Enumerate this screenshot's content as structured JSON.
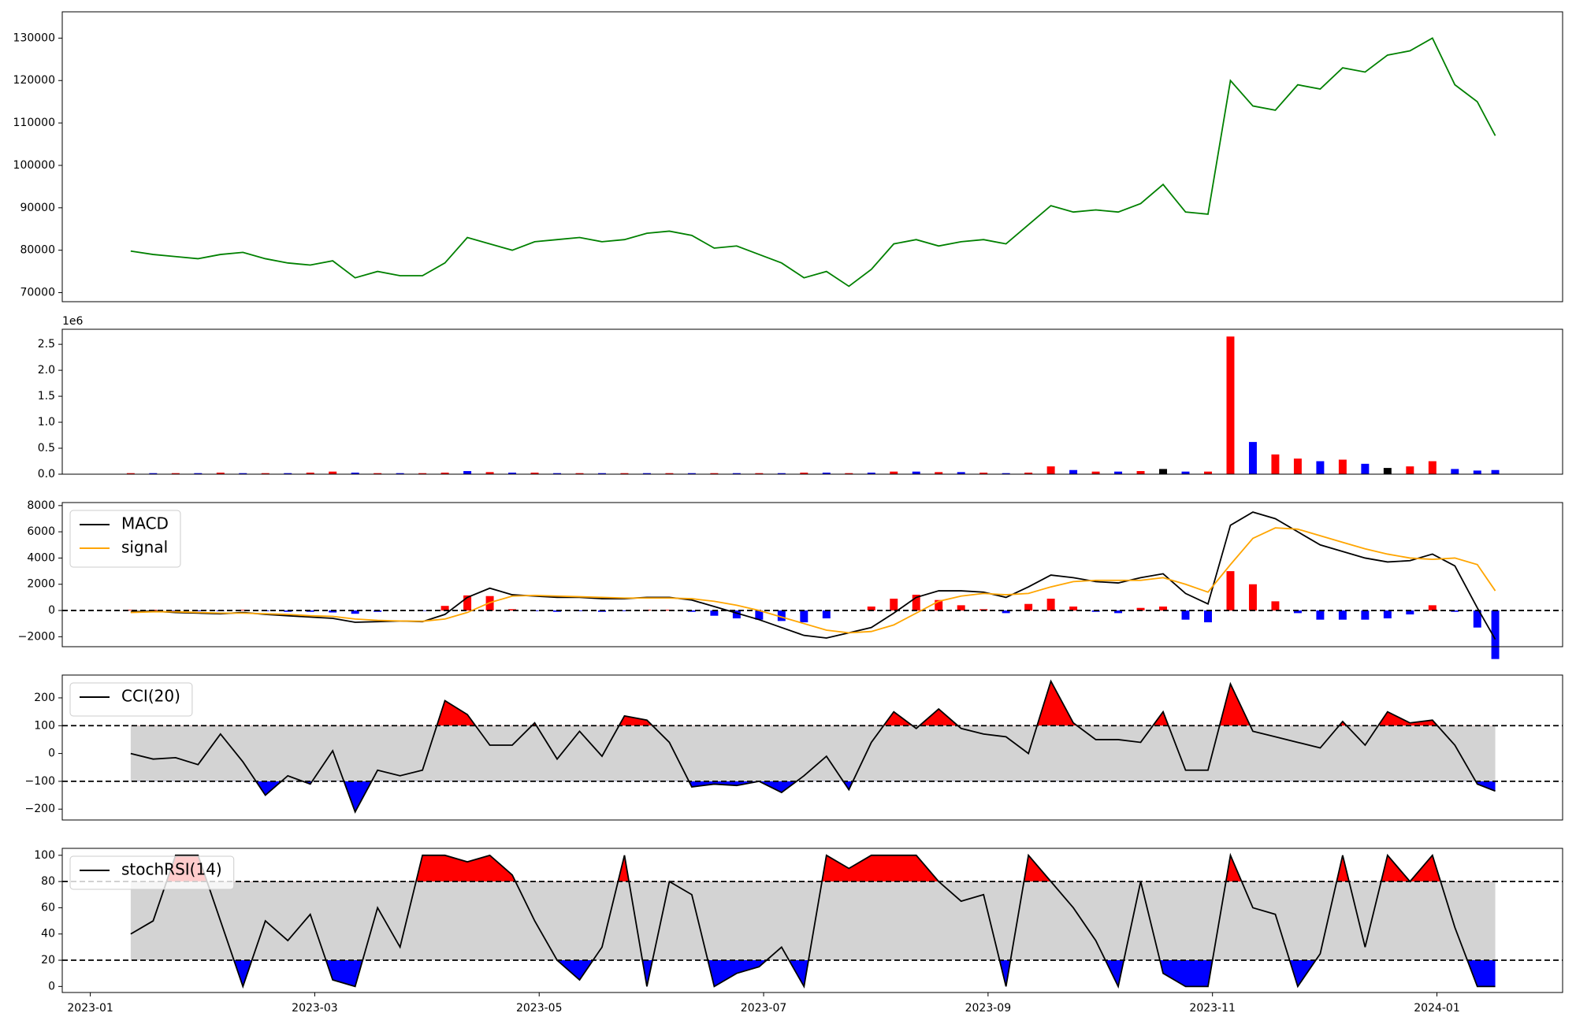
{
  "chart_data": [
    {
      "type": "line",
      "x": [
        0.36,
        0.56,
        0.76,
        0.96,
        1.16,
        1.36,
        1.56,
        1.76,
        1.96,
        2.16,
        2.36,
        2.56,
        2.76,
        2.96,
        3.16,
        3.36,
        3.56,
        3.76,
        3.96,
        4.16,
        4.36,
        4.56,
        4.76,
        4.96,
        5.16,
        5.36,
        5.56,
        5.76,
        5.96,
        6.16,
        6.36,
        6.56,
        6.76,
        6.96,
        7.16,
        7.36,
        7.56,
        7.76,
        7.96,
        8.16,
        8.36,
        8.56,
        8.76,
        8.96,
        9.16,
        9.36,
        9.56,
        9.76,
        9.96,
        10.16,
        10.36,
        10.56,
        10.76,
        10.96,
        11.16,
        11.36,
        11.56,
        11.76,
        11.96,
        12.16,
        12.36,
        12.52
      ],
      "xlim": [
        -0.25,
        13.12
      ],
      "ylim": [
        67870,
        136200
      ],
      "yticks": [
        70000,
        80000,
        90000,
        100000,
        110000,
        120000,
        130000
      ],
      "series": [
        {
          "color": "green",
          "values": [
            79800,
            79000,
            78500,
            78000,
            79000,
            79500,
            78000,
            77000,
            76500,
            77500,
            73500,
            75000,
            74000,
            74000,
            77000,
            83000,
            81500,
            80000,
            82000,
            82500,
            83000,
            82000,
            82500,
            84000,
            84500,
            83500,
            80500,
            81000,
            79000,
            77000,
            73500,
            75000,
            71500,
            75500,
            81500,
            82500,
            81000,
            82000,
            82500,
            81500,
            86000,
            90500,
            89000,
            89500,
            89000,
            91000,
            95500,
            89000,
            88500,
            120000,
            114000,
            113000,
            119000,
            118000,
            123000,
            122000,
            126000,
            127000,
            130000,
            119000,
            115000,
            107000
          ]
        }
      ]
    },
    {
      "type": "bar",
      "x": [
        0.36,
        0.56,
        0.76,
        0.96,
        1.16,
        1.36,
        1.56,
        1.76,
        1.96,
        2.16,
        2.36,
        2.56,
        2.76,
        2.96,
        3.16,
        3.36,
        3.56,
        3.76,
        3.96,
        4.16,
        4.36,
        4.56,
        4.76,
        4.96,
        5.16,
        5.36,
        5.56,
        5.76,
        5.96,
        6.16,
        6.36,
        6.56,
        6.76,
        6.96,
        7.16,
        7.36,
        7.56,
        7.76,
        7.96,
        8.16,
        8.36,
        8.56,
        8.76,
        8.96,
        9.16,
        9.36,
        9.56,
        9.76,
        9.96,
        10.16,
        10.36,
        10.56,
        10.76,
        10.96,
        11.16,
        11.36,
        11.56,
        11.76,
        11.96,
        12.16,
        12.36,
        12.52
      ],
      "xlim": [
        -0.25,
        13.12
      ],
      "ylim": [
        0,
        2.79
      ],
      "y_offset_label": "1e6",
      "yticks": [
        {
          "value": 0,
          "label": "0.0"
        },
        {
          "value": 0.5,
          "label": "0.5"
        },
        {
          "value": 1,
          "label": "1.0"
        },
        {
          "value": 1.5,
          "label": "1.5"
        },
        {
          "value": 2,
          "label": "2.0"
        },
        {
          "value": 2.5,
          "label": "2.5"
        }
      ],
      "values": [
        0.02,
        0.02,
        0.02,
        0.02,
        0.03,
        0.02,
        0.02,
        0.02,
        0.03,
        0.05,
        0.03,
        0.02,
        0.02,
        0.02,
        0.03,
        0.06,
        0.04,
        0.03,
        0.03,
        0.02,
        0.02,
        0.02,
        0.02,
        0.02,
        0.02,
        0.02,
        0.02,
        0.02,
        0.02,
        0.02,
        0.03,
        0.03,
        0.02,
        0.03,
        0.05,
        0.05,
        0.04,
        0.04,
        0.03,
        0.02,
        0.03,
        0.15,
        0.08,
        0.05,
        0.05,
        0.06,
        0.1,
        0.05,
        0.05,
        2.65,
        0.62,
        0.38,
        0.3,
        0.25,
        0.28,
        0.2,
        0.12,
        0.15,
        0.25,
        0.1,
        0.07,
        0.08
      ],
      "colors": [
        "red",
        "blue",
        "red",
        "blue",
        "red",
        "blue",
        "red",
        "blue",
        "red",
        "red",
        "blue",
        "red",
        "blue",
        "red",
        "red",
        "blue",
        "red",
        "blue",
        "red",
        "blue",
        "red",
        "blue",
        "red",
        "blue",
        "red",
        "blue",
        "red",
        "blue",
        "red",
        "blue",
        "red",
        "blue",
        "red",
        "blue",
        "red",
        "blue",
        "red",
        "blue",
        "red",
        "blue",
        "red",
        "red",
        "blue",
        "red",
        "blue",
        "red",
        "black",
        "blue",
        "red",
        "red",
        "blue",
        "red",
        "red",
        "blue",
        "red",
        "blue",
        "black",
        "red",
        "red",
        "blue",
        "blue",
        "blue"
      ]
    },
    {
      "type": "line",
      "x": [
        0.36,
        0.56,
        0.76,
        0.96,
        1.16,
        1.36,
        1.56,
        1.76,
        1.96,
        2.16,
        2.36,
        2.56,
        2.76,
        2.96,
        3.16,
        3.36,
        3.56,
        3.76,
        3.96,
        4.16,
        4.36,
        4.56,
        4.76,
        4.96,
        5.16,
        5.36,
        5.56,
        5.76,
        5.96,
        6.16,
        6.36,
        6.56,
        6.76,
        6.96,
        7.16,
        7.36,
        7.56,
        7.76,
        7.96,
        8.16,
        8.36,
        8.56,
        8.76,
        8.96,
        9.16,
        9.36,
        9.56,
        9.76,
        9.96,
        10.16,
        10.36,
        10.56,
        10.76,
        10.96,
        11.16,
        11.36,
        11.56,
        11.76,
        11.96,
        12.16,
        12.36,
        12.52
      ],
      "xlim": [
        -0.25,
        13.12
      ],
      "ylim": [
        -2760,
        8230
      ],
      "yticks": [
        {
          "value": -2000,
          "label": "−2000"
        },
        0,
        2000,
        4000,
        6000,
        8000
      ],
      "hline": 0,
      "legend": true,
      "histogram": {
        "up_color": "red",
        "down_color": "blue",
        "values": [
          50,
          50,
          -50,
          -50,
          -50,
          50,
          -50,
          -100,
          -100,
          -150,
          -250,
          -100,
          0,
          -30,
          350,
          1150,
          1100,
          100,
          -50,
          -100,
          -50,
          -100,
          -50,
          50,
          50,
          -100,
          -400,
          -600,
          -700,
          -800,
          -900,
          -600,
          0,
          300,
          900,
          1200,
          800,
          400,
          100,
          -200,
          500,
          900,
          300,
          -100,
          -200,
          200,
          300,
          -700,
          -900,
          3000,
          2000,
          700,
          -200,
          -700,
          -700,
          -700,
          -600,
          -300,
          400,
          -100,
          -1300,
          -3700
        ]
      },
      "series": [
        {
          "name": "MACD",
          "color": "black",
          "values": [
            -100,
            -50,
            -150,
            -200,
            -250,
            -150,
            -300,
            -400,
            -500,
            -600,
            -900,
            -850,
            -800,
            -850,
            -300,
            1000,
            1700,
            1200,
            1100,
            1000,
            1000,
            900,
            900,
            1000,
            1000,
            800,
            300,
            -200,
            -700,
            -1300,
            -1900,
            -2100,
            -1700,
            -1300,
            -200,
            1000,
            1500,
            1500,
            1400,
            1000,
            1800,
            2700,
            2500,
            2200,
            2100,
            2500,
            2800,
            1300,
            500,
            6500,
            7500,
            7000,
            6000,
            5000,
            4500,
            4000,
            3700,
            3800,
            4300,
            3400,
            200,
            -2200
          ]
        },
        {
          "name": "signal",
          "color": "orange",
          "values": [
            -150,
            -100,
            -100,
            -150,
            -200,
            -200,
            -250,
            -300,
            -400,
            -450,
            -650,
            -750,
            -800,
            -820,
            -650,
            -150,
            600,
            1100,
            1150,
            1100,
            1050,
            1000,
            950,
            950,
            950,
            900,
            700,
            400,
            0,
            -500,
            -1000,
            -1500,
            -1700,
            -1600,
            -1100,
            -200,
            700,
            1100,
            1300,
            1200,
            1300,
            1800,
            2200,
            2300,
            2300,
            2300,
            2500,
            2000,
            1400,
            3500,
            5500,
            6300,
            6200,
            5700,
            5200,
            4700,
            4300,
            4000,
            3900,
            4000,
            3500,
            1500
          ]
        }
      ]
    },
    {
      "type": "line",
      "x": [
        0.36,
        0.56,
        0.76,
        0.96,
        1.16,
        1.36,
        1.56,
        1.76,
        1.96,
        2.16,
        2.36,
        2.56,
        2.76,
        2.96,
        3.16,
        3.36,
        3.56,
        3.76,
        3.96,
        4.16,
        4.36,
        4.56,
        4.76,
        4.96,
        5.16,
        5.36,
        5.56,
        5.76,
        5.96,
        6.16,
        6.36,
        6.56,
        6.76,
        6.96,
        7.16,
        7.36,
        7.56,
        7.76,
        7.96,
        8.16,
        8.36,
        8.56,
        8.76,
        8.96,
        9.16,
        9.36,
        9.56,
        9.76,
        9.96,
        10.16,
        10.36,
        10.56,
        10.76,
        10.96,
        11.16,
        11.36,
        11.56,
        11.76,
        11.96,
        12.16,
        12.36,
        12.52
      ],
      "xlim": [
        -0.25,
        13.12
      ],
      "ylim": [
        -239,
        282
      ],
      "yticks": [
        {
          "value": -200,
          "label": "−200"
        },
        {
          "value": -100,
          "label": "−100"
        },
        0,
        100,
        200
      ],
      "legend": true,
      "bands": {
        "lower": -100,
        "upper": 100,
        "fill": "lightgray",
        "above_color": "red",
        "below_color": "blue"
      },
      "series": [
        {
          "name": "CCI(20)",
          "color": "black",
          "values": [
            0,
            -20,
            -15,
            -40,
            70,
            -30,
            -150,
            -80,
            -110,
            10,
            -210,
            -60,
            -80,
            -60,
            190,
            140,
            30,
            30,
            110,
            -20,
            80,
            -10,
            135,
            120,
            40,
            -120,
            -110,
            -115,
            -100,
            -140,
            -80,
            -10,
            -130,
            40,
            150,
            90,
            160,
            90,
            70,
            60,
            0,
            260,
            110,
            50,
            50,
            40,
            150,
            -60,
            -60,
            250,
            80,
            60,
            40,
            20,
            115,
            30,
            150,
            110,
            120,
            30,
            -110,
            -135
          ]
        }
      ]
    },
    {
      "type": "line",
      "x": [
        0.36,
        0.56,
        0.76,
        0.96,
        1.16,
        1.36,
        1.56,
        1.76,
        1.96,
        2.16,
        2.36,
        2.56,
        2.76,
        2.96,
        3.16,
        3.36,
        3.56,
        3.76,
        3.96,
        4.16,
        4.36,
        4.56,
        4.76,
        4.96,
        5.16,
        5.36,
        5.56,
        5.76,
        5.96,
        6.16,
        6.36,
        6.56,
        6.76,
        6.96,
        7.16,
        7.36,
        7.56,
        7.76,
        7.96,
        8.16,
        8.36,
        8.56,
        8.76,
        8.96,
        9.16,
        9.36,
        9.56,
        9.76,
        9.96,
        10.16,
        10.36,
        10.56,
        10.76,
        10.96,
        11.16,
        11.36,
        11.56,
        11.76,
        11.96,
        12.16,
        12.36,
        12.52
      ],
      "xlim": [
        -0.25,
        13.12
      ],
      "xticks": [
        {
          "value": 0,
          "label": "2023-01"
        },
        {
          "value": 2,
          "label": "2023-03"
        },
        {
          "value": 4,
          "label": "2023-05"
        },
        {
          "value": 6,
          "label": "2023-07"
        },
        {
          "value": 8,
          "label": "2023-09"
        },
        {
          "value": 10,
          "label": "2023-11"
        },
        {
          "value": 12,
          "label": "2024-01"
        }
      ],
      "ylim": [
        -4.6,
        105.3
      ],
      "yticks": [
        0,
        20,
        40,
        60,
        80,
        100
      ],
      "legend": true,
      "bands": {
        "lower": 20,
        "upper": 80,
        "fill": "lightgray",
        "above_color": "red",
        "below_color": "blue"
      },
      "series": [
        {
          "name": "stochRSI(14)",
          "color": "black",
          "values": [
            40,
            50,
            100,
            100,
            50,
            0,
            50,
            35,
            55,
            5,
            0,
            60,
            30,
            100,
            100,
            95,
            100,
            85,
            50,
            20,
            5,
            30,
            100,
            0,
            80,
            70,
            0,
            10,
            15,
            30,
            0,
            100,
            90,
            100,
            100,
            100,
            80,
            65,
            70,
            0,
            100,
            80,
            60,
            35,
            0,
            80,
            10,
            0,
            0,
            100,
            60,
            55,
            0,
            25,
            100,
            30,
            100,
            80,
            100,
            45,
            0,
            0
          ]
        }
      ]
    }
  ]
}
